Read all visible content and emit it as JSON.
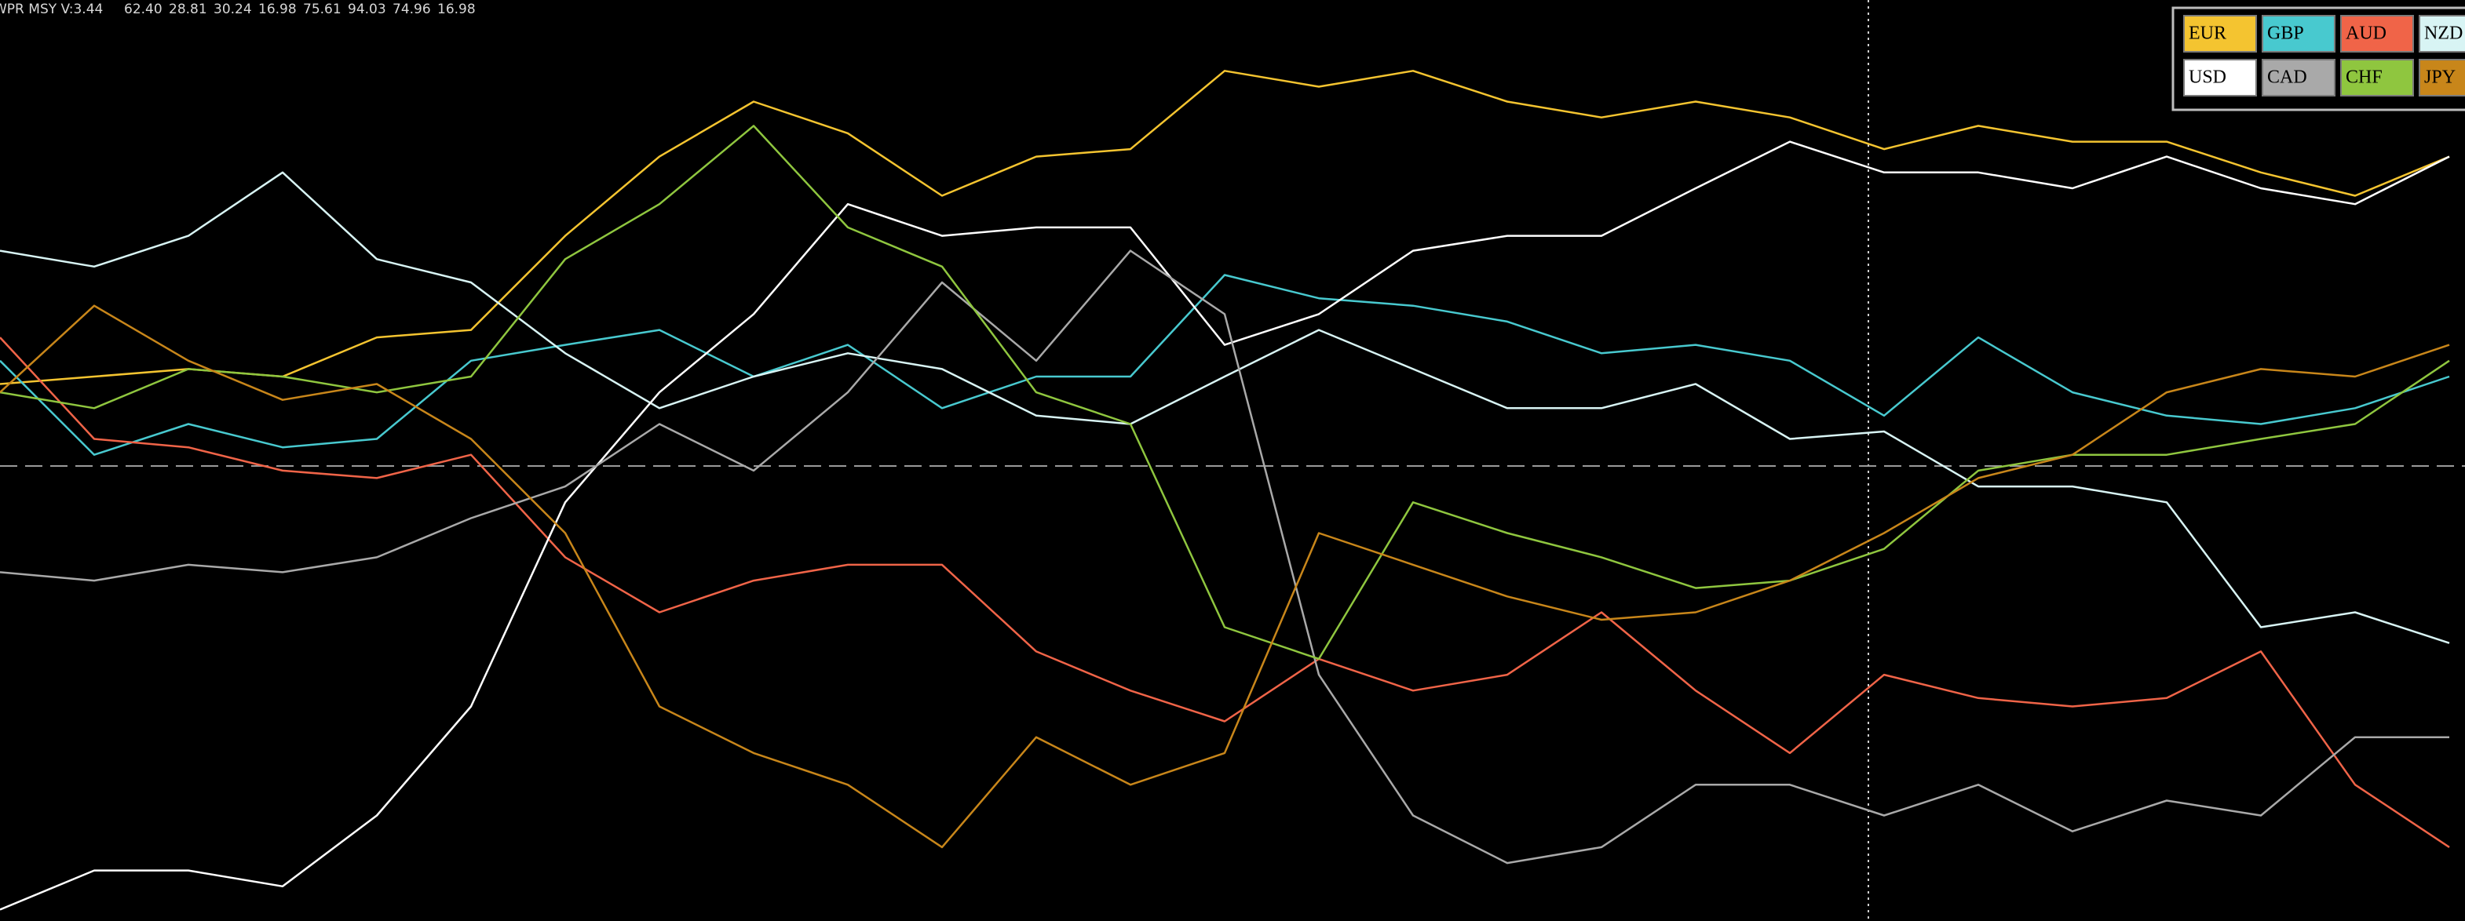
{
  "chart_data": {
    "type": "line",
    "title": "WPR MSY V:3.44",
    "header_values": [
      "62.40",
      "28.81",
      "30.24",
      "16.98",
      "75.61",
      "94.03",
      "74.96",
      "16.98"
    ],
    "ylim": [
      0,
      100
    ],
    "reference_line": 50,
    "series": [
      {
        "name": "EUR",
        "color": "#f4c430",
        "values": [
          58.8,
          59.6,
          60.4,
          59.6,
          63.8,
          64.6,
          74.7,
          83.2,
          89.1,
          85.7,
          79.0,
          83.2,
          84.0,
          92.4,
          90.7,
          92.4,
          89.1,
          87.4,
          89.1,
          87.4,
          84.0,
          86.5,
          84.8,
          84.8,
          81.5,
          79.0,
          83.2
        ]
      },
      {
        "name": "GBP",
        "color": "#48c9cf",
        "values": [
          61.3,
          51.2,
          54.5,
          52.0,
          52.9,
          61.3,
          63.0,
          64.6,
          59.6,
          63.0,
          56.2,
          59.6,
          59.6,
          70.5,
          68.0,
          67.2,
          65.5,
          62.1,
          63.0,
          61.3,
          55.4,
          63.8,
          57.9,
          55.4,
          54.5,
          56.2,
          59.6
        ]
      },
      {
        "name": "AUD",
        "color": "#f06448",
        "values": [
          63.8,
          52.9,
          52.0,
          49.5,
          48.7,
          51.2,
          40.2,
          34.3,
          37.7,
          39.4,
          39.4,
          30.1,
          25.9,
          22.6,
          29.3,
          25.9,
          27.6,
          34.3,
          25.9,
          19.2,
          27.6,
          25.1,
          24.2,
          25.1,
          30.1,
          15.8,
          9.1
        ]
      },
      {
        "name": "NZD",
        "color": "#d8f4f4",
        "values": [
          73.1,
          71.4,
          74.7,
          81.5,
          72.2,
          69.7,
          62.1,
          56.2,
          59.6,
          62.1,
          60.4,
          55.4,
          54.5,
          59.6,
          64.6,
          60.4,
          56.2,
          56.2,
          58.8,
          52.9,
          53.7,
          47.8,
          47.8,
          46.1,
          32.7,
          34.3,
          31.0
        ]
      },
      {
        "name": "USD",
        "color": "#ffffff",
        "values": [
          2.4,
          6.6,
          6.6,
          4.9,
          12.5,
          24.2,
          46.1,
          57.9,
          66.3,
          78.1,
          74.7,
          75.6,
          75.6,
          63.0,
          66.3,
          73.1,
          74.7,
          74.7,
          79.8,
          84.8,
          81.5,
          81.5,
          79.8,
          83.2,
          79.8,
          78.1,
          83.2
        ]
      },
      {
        "name": "CAD",
        "color": "#a9a9a9",
        "values": [
          38.6,
          37.7,
          39.4,
          38.6,
          40.2,
          44.4,
          47.8,
          54.5,
          49.5,
          57.9,
          69.7,
          61.3,
          73.1,
          66.3,
          27.6,
          12.5,
          7.4,
          9.1,
          15.8,
          15.8,
          12.5,
          15.8,
          10.8,
          14.1,
          12.5,
          20.9,
          20.9
        ]
      },
      {
        "name": "CHF",
        "color": "#8fc63f",
        "values": [
          57.9,
          56.2,
          60.4,
          59.6,
          57.9,
          59.6,
          72.2,
          78.1,
          86.5,
          75.6,
          71.4,
          57.9,
          54.5,
          32.7,
          29.3,
          46.1,
          42.8,
          40.2,
          36.9,
          37.7,
          41.1,
          49.5,
          51.2,
          51.2,
          52.9,
          54.5,
          61.3
        ]
      },
      {
        "name": "JPY",
        "color": "#c8861a",
        "values": [
          57.9,
          67.2,
          61.3,
          57.1,
          58.8,
          52.9,
          42.8,
          24.2,
          19.2,
          15.8,
          9.1,
          20.9,
          15.8,
          19.2,
          42.8,
          39.4,
          36.0,
          33.5,
          34.3,
          37.7,
          42.8,
          48.7,
          51.2,
          57.9,
          60.4,
          59.6,
          63.0
        ]
      }
    ]
  }
}
